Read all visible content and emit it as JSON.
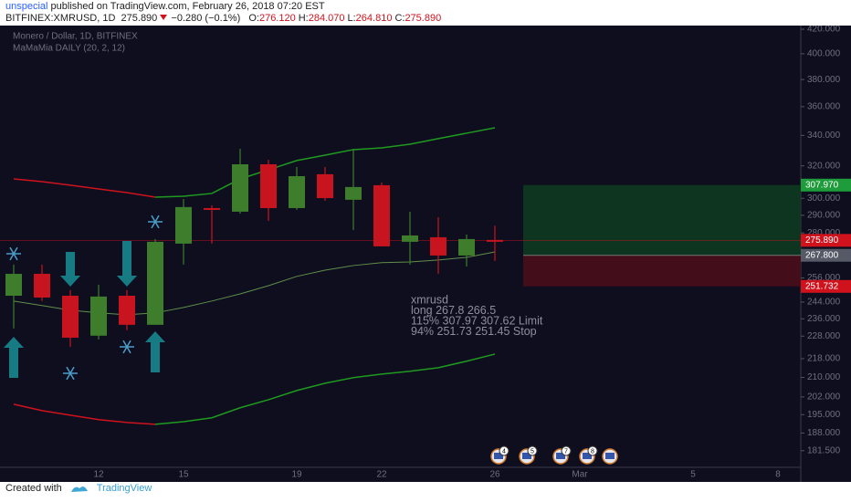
{
  "header": {
    "author": "unspecial",
    "published": "published on TradingView.com, February 26, 2018 07:20 EST",
    "symbol": "BITFINEX:XMRUSD, 1D",
    "last": "275.890",
    "change": "−0.280 (−0.1%)",
    "ohlc": [
      {
        "label": "O:",
        "value": "276.120"
      },
      {
        "label": "H:",
        "value": "284.070"
      },
      {
        "label": "L:",
        "value": "264.810"
      },
      {
        "label": "C:",
        "value": "275.890"
      }
    ]
  },
  "footer": {
    "text": "Created with",
    "brand": "TradingView"
  },
  "chart_data": {
    "type": "candlestick",
    "legend": [
      "Monero / Dollar, 1D, BITFINEX",
      "MaMaMia DAILY (20, 2, 12)"
    ],
    "log": true,
    "grid": false,
    "up_color": "#3d7d2b",
    "down_color": "#c8141e",
    "categories": [
      null,
      null,
      null,
      "12",
      null,
      null,
      "15",
      null,
      null,
      null,
      "19",
      null,
      null,
      "22",
      null,
      null,
      null,
      "26",
      null,
      null,
      "Mar",
      null,
      null,
      null,
      "5",
      null,
      null,
      "8"
    ],
    "open": [
      247.1,
      258.1,
      247.1,
      228.2,
      247.1,
      233.2,
      274.1,
      294.2,
      292.1,
      321.0,
      294.2,
      314.7,
      299.1,
      307.9,
      275.1,
      277.6,
      267.7,
      276.12,
      null,
      null,
      null,
      null,
      null,
      null,
      null,
      null,
      null,
      null
    ],
    "high": [
      262.9,
      262.9,
      249.9,
      252.6,
      249.9,
      276.6,
      299.6,
      295.8,
      331.1,
      323.9,
      319.3,
      319.3,
      331.1,
      309.6,
      292.1,
      288.9,
      279.1,
      284.07,
      null,
      null,
      null,
      null,
      null,
      null,
      null,
      null,
      null,
      null
    ],
    "low": [
      231.5,
      244.5,
      223.2,
      226.5,
      230.7,
      233.2,
      262.9,
      274.1,
      291.0,
      286.8,
      293.2,
      298.5,
      281.6,
      272.6,
      262.9,
      258.1,
      261.9,
      264.81,
      null,
      null,
      null,
      null,
      null,
      null,
      null,
      null,
      null,
      null
    ],
    "close": [
      258.1,
      246.2,
      227.3,
      246.7,
      233.2,
      275.1,
      294.8,
      293.2,
      321.0,
      294.2,
      313.5,
      300.1,
      306.8,
      272.6,
      278.6,
      267.7,
      276.6,
      275.89,
      null,
      null,
      null,
      null,
      null,
      null,
      null,
      null,
      null,
      null
    ],
    "series": [
      {
        "color": "#d0121d",
        "values": [
          311.8,
          310.1,
          307.9,
          305.6,
          303.4,
          300.7,
          null,
          null,
          null,
          null,
          null,
          null,
          null,
          null,
          null,
          null,
          null,
          null,
          null,
          null,
          null,
          null,
          null,
          null,
          null,
          null,
          null,
          null
        ]
      },
      {
        "color": "#1f9a1f",
        "values": [
          null,
          null,
          null,
          null,
          null,
          300.7,
          301.2,
          302.9,
          311.8,
          317.5,
          323.4,
          326.9,
          330.5,
          331.7,
          334.1,
          337.8,
          341.5,
          345.2,
          null,
          null,
          null,
          null,
          null,
          null,
          null,
          null,
          null,
          null
        ]
      },
      {
        "color": "#d0121d",
        "values": [
          199.1,
          196.6,
          194.8,
          193.1,
          192.0,
          191.3,
          null,
          null,
          null,
          null,
          null,
          null,
          null,
          null,
          null,
          null,
          null,
          null,
          null,
          null,
          null,
          null,
          null,
          null,
          null,
          null,
          null,
          null
        ]
      },
      {
        "color": "#1f9a1f",
        "values": [
          null,
          null,
          null,
          null,
          null,
          191.3,
          192.3,
          193.8,
          197.7,
          200.9,
          204.6,
          207.6,
          209.9,
          211.4,
          212.6,
          214.1,
          216.9,
          220.0,
          null,
          null,
          null,
          null,
          null,
          null,
          null,
          null,
          null,
          null
        ]
      },
      {
        "color": "#5f8f4a",
        "values": [
          244.5,
          242.3,
          240.1,
          238.8,
          237.9,
          238.8,
          241.4,
          244.5,
          248.0,
          252.1,
          256.8,
          260.0,
          262.4,
          263.9,
          264.3,
          265.3,
          266.7,
          269.6,
          null,
          null,
          null,
          null,
          null,
          null,
          null,
          null,
          null,
          null
        ]
      }
    ],
    "ylim": [
      175.6,
      423.1
    ],
    "yticks": [
      {
        "value": 420,
        "label": "420.000"
      },
      {
        "value": 400,
        "label": "400.000"
      },
      {
        "value": 380,
        "label": "380.000"
      },
      {
        "value": 360,
        "label": "360.000"
      },
      {
        "value": 340,
        "label": "340.000"
      },
      {
        "value": 320,
        "label": "320.000"
      },
      {
        "value": 300,
        "label": "300.000"
      },
      {
        "value": 290,
        "label": "290.000"
      },
      {
        "value": 280,
        "label": "280.000"
      },
      {
        "value": 256,
        "label": "256.000"
      },
      {
        "value": 244,
        "label": "244.000"
      },
      {
        "value": 236,
        "label": "236.000"
      },
      {
        "value": 228,
        "label": "228.000"
      },
      {
        "value": 218,
        "label": "218.000"
      },
      {
        "value": 210,
        "label": "210.000"
      },
      {
        "value": 202,
        "label": "202.000"
      },
      {
        "value": 195,
        "label": "195.000"
      },
      {
        "value": 188,
        "label": "188.000"
      },
      {
        "value": 181.5,
        "label": "181.500"
      }
    ],
    "price_labels": [
      {
        "value": 307.97,
        "label": "307.970",
        "color": "#1e9b3a"
      },
      {
        "value": 275.89,
        "label": "275.890",
        "color": "#d0121d"
      },
      {
        "value": 267.8,
        "label": "267.800",
        "color": "#555a66"
      },
      {
        "value": 251.732,
        "label": "251.732",
        "color": "#d0121d"
      }
    ],
    "position": {
      "target": 307.97,
      "entry": 267.8,
      "stop": 251.732
    },
    "annotation": [
      "xmrusd",
      "long    267.8       266.5",
      "115%  307.97   307.62   Limit",
      "94%    251.73   251.45   Stop"
    ],
    "events": [
      "4",
      "5",
      "7",
      "8"
    ]
  }
}
